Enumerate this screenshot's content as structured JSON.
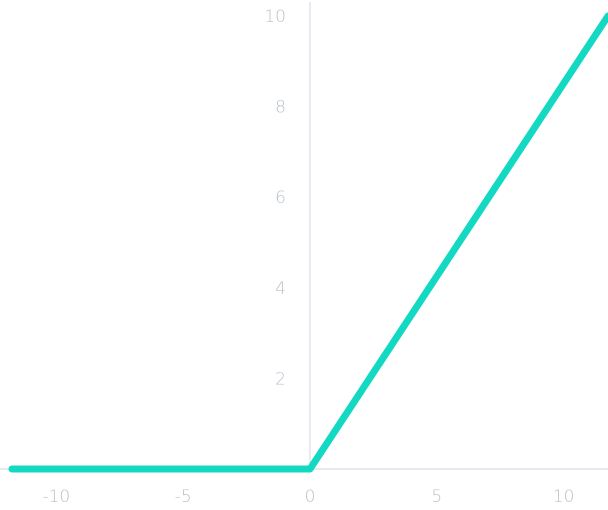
{
  "chart_data": {
    "type": "line",
    "title": "",
    "xlabel": "",
    "ylabel": "",
    "xlim": [
      -11.75,
      11.75
    ],
    "ylim": [
      0,
      10
    ],
    "x_ticks": [
      -10,
      -5,
      0,
      5,
      10
    ],
    "y_ticks": [
      2,
      4,
      6,
      8,
      10
    ],
    "x_tick_labels": [
      "-10",
      "-5",
      "0",
      "5",
      "10"
    ],
    "y_tick_labels": [
      "2",
      "4",
      "6",
      "8",
      "10"
    ],
    "grid": false,
    "series": [
      {
        "color": "#14d9c2",
        "points": [
          [
            -11.75,
            0
          ],
          [
            0,
            0
          ],
          [
            11.75,
            10
          ]
        ]
      }
    ],
    "axis_color": "#d7dde6",
    "label_color": "#b9c1cd"
  }
}
